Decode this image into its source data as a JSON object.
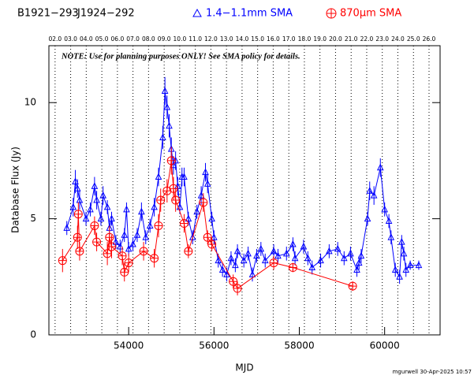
{
  "chart_data": {
    "type": "scatter",
    "title": "B1921−293",
    "subtitle": "J1924−292",
    "annotation": "NOTE: Use for planning purposes ONLY!  See SMA policy for details.",
    "xlabel": "MJD",
    "ylabel": "Database Flux (Jy)",
    "footer": "mgurwell 30-Apr-2025 10:57",
    "xlim": [
      52130,
      61300
    ],
    "ylim": [
      0,
      12.45
    ],
    "xticks": [
      54000,
      56000,
      58000,
      60000
    ],
    "yticks": [
      0,
      5,
      10
    ],
    "x2ticks": [
      {
        "value": 52275,
        "label": "02.0"
      },
      {
        "value": 52640,
        "label": "03.0"
      },
      {
        "value": 53005,
        "label": "04.0"
      },
      {
        "value": 53371,
        "label": "05.0"
      },
      {
        "value": 53736,
        "label": "06.0"
      },
      {
        "value": 54101,
        "label": "07.0"
      },
      {
        "value": 54466,
        "label": "08.0"
      },
      {
        "value": 54832,
        "label": "09.0"
      },
      {
        "value": 55197,
        "label": "10.0"
      },
      {
        "value": 55562,
        "label": "11.0"
      },
      {
        "value": 55927,
        "label": "12.0"
      },
      {
        "value": 56293,
        "label": "13.0"
      },
      {
        "value": 56658,
        "label": "14.0"
      },
      {
        "value": 57023,
        "label": "15.0"
      },
      {
        "value": 57388,
        "label": "16.0"
      },
      {
        "value": 57754,
        "label": "17.0"
      },
      {
        "value": 58119,
        "label": "18.0"
      },
      {
        "value": 58484,
        "label": "19.0"
      },
      {
        "value": 58849,
        "label": "20.0"
      },
      {
        "value": 59215,
        "label": "21.0"
      },
      {
        "value": 59580,
        "label": "22.0"
      },
      {
        "value": 59945,
        "label": "23.0"
      },
      {
        "value": 60310,
        "label": "24.0"
      },
      {
        "value": 60676,
        "label": "25.0"
      },
      {
        "value": 61041,
        "label": "26.0"
      }
    ],
    "series": [
      {
        "name": "1.4−1.1mm SMA",
        "color": "#0000ff",
        "marker": "triangle",
        "x": [
          52550,
          52700,
          52750,
          52800,
          52850,
          53000,
          53100,
          53200,
          53250,
          53350,
          53400,
          53500,
          53550,
          53600,
          53700,
          53800,
          53900,
          53950,
          54000,
          54100,
          54200,
          54300,
          54400,
          54500,
          54600,
          54700,
          54800,
          54850,
          54900,
          54950,
          55000,
          55050,
          55100,
          55150,
          55200,
          55250,
          55300,
          55400,
          55500,
          55600,
          55700,
          55800,
          55850,
          55950,
          56000,
          56100,
          56200,
          56300,
          56400,
          56500,
          56550,
          56700,
          56800,
          56900,
          57000,
          57100,
          57200,
          57400,
          57500,
          57700,
          57850,
          57900,
          58100,
          58200,
          58300,
          58500,
          58700,
          58900,
          59050,
          59200,
          59350,
          59400,
          59450,
          59600,
          59650,
          59750,
          59900,
          60000,
          60100,
          60150,
          60250,
          60350,
          60400,
          60450,
          60500,
          60600,
          60800
        ],
        "values": [
          4.6,
          5.5,
          6.6,
          6.3,
          5.8,
          5.0,
          5.4,
          6.4,
          5.8,
          5.0,
          6.0,
          5.5,
          4.6,
          5.0,
          4.0,
          3.8,
          4.3,
          5.4,
          3.7,
          3.9,
          4.3,
          5.3,
          4.2,
          4.7,
          5.5,
          6.8,
          8.5,
          10.5,
          9.8,
          9.0,
          8.0,
          7.3,
          7.5,
          6.4,
          5.5,
          6.8,
          6.8,
          5.0,
          4.2,
          5.3,
          6.0,
          7.0,
          6.5,
          5.0,
          4.2,
          3.2,
          2.8,
          2.6,
          3.3,
          3.0,
          3.6,
          3.2,
          3.5,
          2.6,
          3.4,
          3.7,
          3.2,
          3.6,
          3.4,
          3.5,
          3.9,
          3.3,
          3.8,
          3.3,
          2.9,
          3.2,
          3.6,
          3.7,
          3.3,
          3.5,
          2.8,
          3.1,
          3.4,
          5.0,
          6.2,
          6.0,
          7.2,
          5.4,
          4.9,
          4.2,
          2.8,
          2.5,
          4.0,
          3.5,
          2.8,
          3.0,
          3.0
        ],
        "errors": [
          0.3,
          0.4,
          0.5,
          0.4,
          0.4,
          0.3,
          0.3,
          0.4,
          0.4,
          0.3,
          0.4,
          0.3,
          0.3,
          0.3,
          0.3,
          0.3,
          0.3,
          0.3,
          0.3,
          0.3,
          0.3,
          0.4,
          0.3,
          0.3,
          0.4,
          0.4,
          0.5,
          0.6,
          0.5,
          0.5,
          0.5,
          0.4,
          0.4,
          0.4,
          0.3,
          0.4,
          0.4,
          0.3,
          0.3,
          0.3,
          0.4,
          0.4,
          0.4,
          0.3,
          0.3,
          0.3,
          0.3,
          0.3,
          0.3,
          0.3,
          0.3,
          0.3,
          0.3,
          0.3,
          0.3,
          0.3,
          0.3,
          0.3,
          0.3,
          0.3,
          0.3,
          0.3,
          0.3,
          0.3,
          0.3,
          0.3,
          0.3,
          0.3,
          0.3,
          0.3,
          0.3,
          0.3,
          0.3,
          0.3,
          0.4,
          0.4,
          0.4,
          0.3,
          0.3,
          0.3,
          0.3,
          0.3,
          0.3,
          0.3,
          0.3,
          0.2,
          0.2
        ]
      },
      {
        "name": "870μm SMA",
        "color": "#ff0000",
        "marker": "circle-plus",
        "x": [
          52450,
          52800,
          52820,
          52850,
          53200,
          53250,
          53500,
          53550,
          53600,
          53850,
          53900,
          54000,
          54350,
          54600,
          54700,
          54750,
          54900,
          55000,
          55050,
          55100,
          55300,
          55400,
          55750,
          55850,
          55950,
          56450,
          56550,
          57400,
          57850,
          59250
        ],
        "values": [
          3.2,
          4.2,
          5.2,
          3.6,
          4.7,
          4.0,
          3.5,
          4.2,
          3.8,
          3.4,
          2.7,
          3.1,
          3.6,
          3.3,
          4.7,
          5.8,
          6.2,
          7.5,
          6.3,
          5.8,
          4.8,
          3.6,
          5.7,
          4.2,
          3.9,
          2.3,
          2.0,
          3.1,
          2.9,
          2.1
        ],
        "errors": [
          0.5,
          0.5,
          0.5,
          0.4,
          0.4,
          0.4,
          0.5,
          0.5,
          0.5,
          0.4,
          0.4,
          0.4,
          0.4,
          0.4,
          0.5,
          0.5,
          0.5,
          0.6,
          0.5,
          0.5,
          0.4,
          0.3,
          0.4,
          0.3,
          0.3,
          0.3,
          0.3,
          0.3,
          0.2,
          0.2
        ]
      }
    ]
  }
}
